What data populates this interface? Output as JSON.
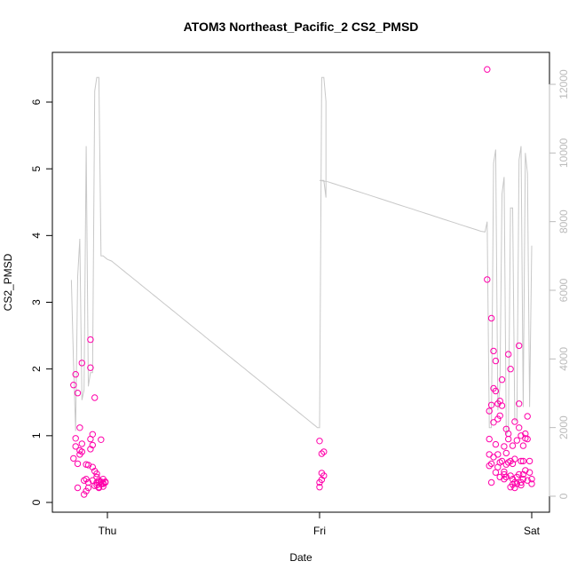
{
  "chart_data": {
    "type": "scatter",
    "title": "ATOM3 Northeast_Pacific_2 CS2_PMSD",
    "xlabel": "Date",
    "ylabel": "CS2_PMSD",
    "x_ticks": [
      "Thu",
      "Fri",
      "Sat"
    ],
    "x_range_days": [
      -0.2,
      2.0
    ],
    "ylim": [
      0,
      6.6
    ],
    "y_ticks": [
      0,
      1,
      2,
      3,
      4,
      5,
      6
    ],
    "y2lim": [
      0,
      12400
    ],
    "y2_ticks": [
      0,
      2000,
      4000,
      6000,
      8000,
      10000,
      12000
    ],
    "grid": false,
    "colors": {
      "points": "#ff00aa",
      "line": "#c8c8c8",
      "axis": "#000000",
      "right_axis": "#bbbbbb"
    },
    "series": [
      {
        "kind": "points",
        "x": [
          -0.16,
          -0.16,
          -0.15,
          -0.15,
          -0.15,
          -0.14,
          -0.14,
          -0.14,
          -0.13,
          -0.13,
          -0.13,
          -0.12,
          -0.12,
          -0.12,
          -0.11,
          -0.11,
          -0.1,
          -0.1,
          -0.1,
          -0.09,
          -0.09,
          -0.09,
          -0.08,
          -0.08,
          -0.08,
          -0.08,
          -0.07,
          -0.07,
          -0.07,
          -0.07,
          -0.06,
          -0.06,
          -0.06,
          -0.05,
          -0.05,
          -0.05,
          -0.05,
          -0.04,
          -0.04,
          -0.04,
          -0.04,
          -0.03,
          -0.03,
          -0.03,
          -0.02,
          -0.02,
          -0.02,
          -0.02,
          -0.01,
          -0.01,
          1.0,
          1.0,
          1.0,
          1.01,
          1.01,
          1.01,
          1.02,
          1.02,
          1.79,
          1.79,
          1.8,
          1.8,
          1.8,
          1.8,
          1.81,
          1.81,
          1.81,
          1.81,
          1.82,
          1.82,
          1.82,
          1.82,
          1.83,
          1.83,
          1.83,
          1.83,
          1.84,
          1.84,
          1.84,
          1.84,
          1.85,
          1.85,
          1.85,
          1.85,
          1.86,
          1.86,
          1.86,
          1.87,
          1.87,
          1.87,
          1.87,
          1.88,
          1.88,
          1.88,
          1.88,
          1.89,
          1.89,
          1.89,
          1.89,
          1.9,
          1.9,
          1.9,
          1.9,
          1.91,
          1.91,
          1.91,
          1.91,
          1.92,
          1.92,
          1.92,
          1.92,
          1.93,
          1.93,
          1.93,
          1.94,
          1.94,
          1.94,
          1.94,
          1.95,
          1.95,
          1.95,
          1.95,
          1.96,
          1.96,
          1.96,
          1.96,
          1.97,
          1.97,
          1.97,
          1.98,
          1.98,
          1.98,
          1.99,
          1.99,
          2.0,
          2.0
        ],
        "y": [
          0.66,
          1.76,
          0.84,
          0.96,
          1.92,
          1.64,
          0.22,
          0.58,
          0.78,
          1.12,
          0.72,
          2.09,
          0.76,
          0.88,
          0.33,
          0.12,
          0.57,
          0.35,
          0.17,
          0.3,
          0.22,
          0.56,
          2.02,
          2.44,
          0.8,
          0.95,
          1.02,
          0.33,
          0.86,
          0.53,
          0.47,
          1.57,
          0.25,
          0.43,
          0.38,
          0.3,
          0.26,
          0.22,
          0.3,
          0.33,
          0.23,
          0.94,
          0.28,
          0.31,
          0.24,
          0.28,
          0.35,
          0.29,
          0.3,
          0.31,
          0.92,
          0.23,
          0.3,
          0.73,
          0.44,
          0.34,
          0.76,
          0.4,
          6.49,
          3.34,
          0.95,
          1.37,
          0.55,
          0.72,
          0.3,
          0.58,
          2.76,
          1.46,
          2.27,
          1.71,
          1.2,
          0.68,
          2.12,
          1.67,
          0.87,
          0.45,
          1.48,
          1.25,
          0.72,
          0.53,
          1.52,
          1.3,
          0.38,
          0.6,
          1.84,
          1.45,
          0.62,
          0.84,
          0.46,
          0.42,
          0.35,
          0.74,
          1.1,
          0.57,
          0.38,
          1.03,
          2.22,
          0.95,
          0.6,
          2.0,
          0.4,
          0.23,
          0.62,
          0.58,
          0.35,
          0.27,
          0.85,
          0.65,
          0.3,
          0.22,
          1.21,
          0.93,
          0.38,
          0.28,
          2.35,
          1.48,
          0.42,
          1.12,
          1.0,
          0.62,
          0.3,
          0.26,
          0.85,
          0.62,
          0.42,
          0.35,
          1.03,
          0.96,
          0.48,
          1.29,
          0.33,
          0.95,
          0.45,
          0.62,
          0.35,
          0.28
        ]
      },
      {
        "kind": "line",
        "axis": "right",
        "x": [
          -0.17,
          -0.16,
          -0.15,
          -0.14,
          -0.13,
          -0.12,
          -0.11,
          -0.1,
          -0.09,
          -0.08,
          -0.07,
          -0.06,
          -0.05,
          -0.04,
          -0.03,
          -0.02,
          -0.01,
          0.0,
          0.02,
          0.03,
          0.04,
          0.05,
          0.06,
          0.07,
          0.08,
          0.09,
          0.1,
          0.11,
          0.12,
          0.13,
          0.14,
          0.15,
          0.16,
          0.17,
          0.18,
          0.19,
          0.2,
          0.21,
          0.22,
          0.23,
          0.24,
          0.25,
          0.26,
          0.27,
          0.28,
          0.29,
          0.3,
          0.31,
          0.32,
          0.33,
          0.34,
          0.35,
          0.36,
          0.37,
          0.38,
          0.39,
          0.4,
          0.41,
          0.42,
          0.43,
          0.44,
          0.45,
          0.46,
          0.47,
          0.48,
          0.49,
          0.5,
          0.51,
          0.52,
          0.53,
          0.54,
          0.55,
          0.56,
          0.57,
          0.58,
          0.59,
          0.6,
          0.61,
          0.62,
          0.63,
          0.64,
          0.65,
          0.66,
          0.67,
          0.68,
          0.69,
          0.7,
          0.71,
          0.72,
          0.73,
          0.74,
          0.75,
          0.76,
          0.77,
          0.78,
          0.79,
          0.8,
          0.81,
          0.82,
          0.83,
          0.84,
          0.85,
          0.86,
          0.87,
          0.88,
          0.89,
          0.9,
          0.91,
          0.92,
          0.93,
          0.94,
          0.95,
          0.96,
          0.97,
          0.98,
          0.99,
          1.0,
          1.01,
          1.02,
          1.03,
          1.03,
          1.02,
          1.01,
          1.0,
          1.04,
          1.06,
          1.08,
          1.1,
          1.12,
          1.14,
          1.16,
          1.18,
          1.2,
          1.22,
          1.24,
          1.26,
          1.28,
          1.3,
          1.32,
          1.34,
          1.36,
          1.38,
          1.4,
          1.42,
          1.44,
          1.46,
          1.48,
          1.5,
          1.52,
          1.54,
          1.56,
          1.58,
          1.6,
          1.62,
          1.64,
          1.66,
          1.68,
          1.7,
          1.72,
          1.74,
          1.76,
          1.78,
          1.79,
          1.8,
          1.81,
          1.82,
          1.83,
          1.84,
          1.85,
          1.86,
          1.87,
          1.88,
          1.89,
          1.9,
          1.91,
          1.92,
          1.93,
          1.94,
          1.95,
          1.96,
          1.97,
          1.98,
          1.99,
          2.0
        ],
        "y": [
          6300,
          3900,
          1900,
          6400,
          7500,
          2800,
          3100,
          10200,
          3200,
          3600,
          3600,
          11800,
          12200,
          12200,
          7000,
          7000,
          6950,
          6900,
          6850,
          6800,
          6750,
          6700,
          6650,
          6600,
          6550,
          6500,
          6450,
          6400,
          6350,
          6300,
          6250,
          6200,
          6150,
          6100,
          6050,
          6000,
          5950,
          5900,
          5850,
          5800,
          5750,
          5700,
          5650,
          5600,
          5550,
          5500,
          5450,
          5400,
          5350,
          5300,
          5250,
          5200,
          5150,
          5100,
          5050,
          5000,
          4950,
          4900,
          4850,
          4800,
          4750,
          4700,
          4650,
          4600,
          4550,
          4500,
          4450,
          4400,
          4350,
          4300,
          4250,
          4200,
          4150,
          4100,
          4050,
          4000,
          3950,
          3900,
          3850,
          3800,
          3750,
          3700,
          3650,
          3600,
          3550,
          3500,
          3450,
          3400,
          3350,
          3300,
          3250,
          3200,
          3150,
          3100,
          3050,
          3000,
          2950,
          2900,
          2850,
          2800,
          2750,
          2700,
          2650,
          2600,
          2550,
          2500,
          2450,
          2400,
          2350,
          2300,
          2250,
          2200,
          2150,
          2100,
          2050,
          2000,
          2000,
          12200,
          12200,
          11500,
          8700,
          9200,
          9200,
          9200,
          9160,
          9120,
          9080,
          9040,
          9000,
          8960,
          8920,
          8880,
          8840,
          8800,
          8760,
          8720,
          8680,
          8640,
          8600,
          8560,
          8520,
          8480,
          8440,
          8400,
          8360,
          8320,
          8280,
          8240,
          8200,
          8160,
          8120,
          8080,
          8040,
          8000,
          7960,
          7920,
          7880,
          7840,
          7800,
          7760,
          7720,
          7700,
          8000,
          2000,
          2000,
          9700,
          10100,
          2500,
          3200,
          8800,
          9300,
          1800,
          1900,
          8400,
          8400,
          2200,
          2200,
          9800,
          10200,
          2600,
          10000,
          9400,
          2600,
          7300
        ]
      }
    ]
  }
}
